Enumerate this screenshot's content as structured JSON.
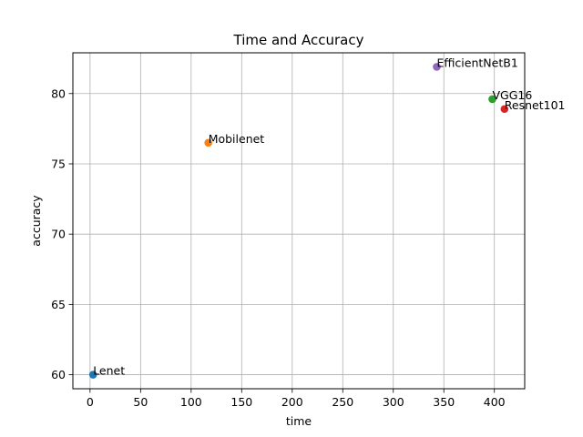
{
  "chart_data": {
    "type": "scatter",
    "title": "Time and Accuracy",
    "xlabel": "time",
    "ylabel": "accuracy",
    "xlim": [
      -17,
      430
    ],
    "ylim": [
      59.0,
      82.9
    ],
    "xticks": [
      0,
      50,
      100,
      150,
      200,
      250,
      300,
      350,
      400
    ],
    "yticks": [
      60,
      65,
      70,
      75,
      80
    ],
    "grid": true,
    "points": [
      {
        "label": "Lenet",
        "x": 3,
        "y": 60.0,
        "color": "#1f77b4"
      },
      {
        "label": "Mobilenet",
        "x": 117,
        "y": 76.5,
        "color": "#ff7f0e"
      },
      {
        "label": "VGG16",
        "x": 398,
        "y": 79.6,
        "color": "#2ca02c"
      },
      {
        "label": "Resnet101",
        "x": 410,
        "y": 78.9,
        "color": "#d62728"
      },
      {
        "label": "EfficientNetB1",
        "x": 343,
        "y": 81.9,
        "color": "#9467bd"
      }
    ]
  }
}
